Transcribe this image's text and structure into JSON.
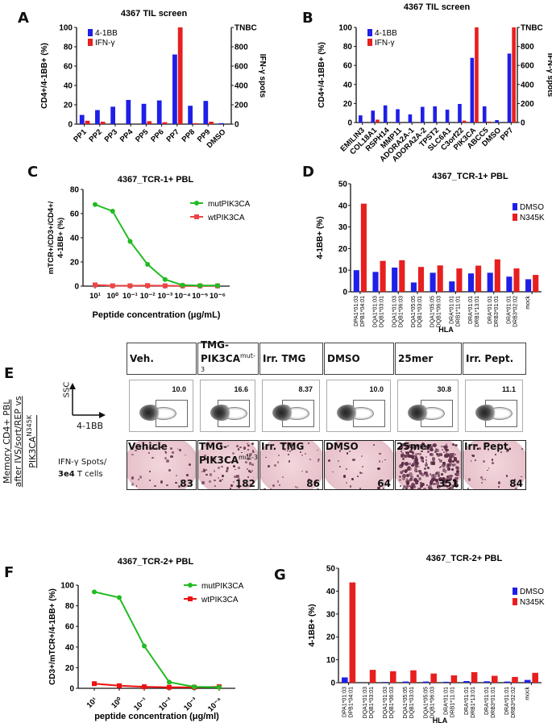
{
  "panels": {
    "A": "A",
    "B": "B",
    "C": "C",
    "D": "D",
    "E": "E",
    "F": "F",
    "G": "G"
  },
  "chart_data": [
    {
      "id": "A",
      "type": "bar",
      "title": "4367 TIL screen",
      "ylabel": "CD4+/4-1BB+ (%)",
      "y2label": "IFN-γ spots",
      "y2_top_label": "TNBC",
      "ylim": [
        0,
        100
      ],
      "y2lim": [
        0,
        1000
      ],
      "yticks": [
        0,
        20,
        40,
        60,
        80,
        100
      ],
      "y2ticks": [
        0,
        200,
        400,
        600,
        800
      ],
      "legend": "top-left",
      "categories": [
        "PP1",
        "PP2",
        "PP3",
        "PP4",
        "PP5",
        "PP6",
        "PP7",
        "PP8",
        "PP9",
        "DMSO"
      ],
      "series": [
        {
          "name": "4-1BB",
          "axis": "left",
          "color": "#1f1fe8",
          "values": [
            9.5,
            14.5,
            18,
            25,
            21,
            24.5,
            72,
            19,
            24,
            1
          ]
        },
        {
          "name": "IFN-γ",
          "axis": "right",
          "color": "#e81f1f",
          "values": [
            35,
            25,
            0,
            0,
            30,
            20,
            1000,
            10,
            25,
            0
          ]
        }
      ]
    },
    {
      "id": "B",
      "type": "bar",
      "title": "4367 TIL screen",
      "ylabel": "CD4+/4-1BB+ (%)",
      "y2label": "IFN-γ spots",
      "y2_top_label": "TNBC",
      "ylim": [
        0,
        100
      ],
      "y2lim": [
        0,
        1000
      ],
      "yticks": [
        0,
        20,
        40,
        60,
        80,
        100
      ],
      "y2ticks": [
        0,
        200,
        400,
        600,
        800
      ],
      "legend": "top-left",
      "categories": [
        "EMILIN3",
        "COL18A1",
        "RSPH14",
        "MMP11",
        "ADORA2A-1",
        "ADORA2A-2",
        "TPST2",
        "SLC6A1",
        "C3orf22",
        "PIK3CA",
        "ABCC5",
        "DMSO",
        "PP7"
      ],
      "series": [
        {
          "name": "4-1BB",
          "axis": "left",
          "color": "#1f1fe8",
          "values": [
            7.5,
            12.5,
            18,
            14,
            8.5,
            16.5,
            17,
            13.5,
            19.5,
            68,
            17,
            2.5,
            72.5
          ]
        },
        {
          "name": "IFN-γ",
          "axis": "right",
          "color": "#e81f1f",
          "values": [
            0,
            30,
            0,
            0,
            0,
            0,
            0,
            0,
            20,
            1000,
            10,
            0,
            1000
          ]
        }
      ]
    },
    {
      "id": "C",
      "type": "line",
      "title": "4367_TCR-1+ PBL",
      "ylabel": "mTCR+/CD3+/CD4+/ 4-1BB+ (%)",
      "xlabel": "Peptide concentration (μg/mL)",
      "ylim": [
        0,
        80
      ],
      "yticks": [
        0,
        20,
        40,
        60,
        80
      ],
      "legend": "top-right",
      "x": [
        "10¹",
        "10⁰",
        "10⁻¹",
        "10⁻²",
        "10⁻³",
        "10⁻⁴",
        "10⁻⁵",
        "10⁻⁶"
      ],
      "series": [
        {
          "name": "mutPIK3CA",
          "color": "#22bb22",
          "marker": "circle",
          "values": [
            67.5,
            62,
            37,
            18,
            5.5,
            0.8,
            0.5,
            0.5
          ]
        },
        {
          "name": "wtPIK3CA",
          "color": "#ee4444",
          "marker": "square",
          "values": [
            1,
            0.3,
            0.3,
            0.5,
            0.3,
            0.2,
            0.2,
            0.2
          ]
        }
      ]
    },
    {
      "id": "D",
      "type": "bar",
      "title": "4367_TCR-1+ PBL",
      "ylabel": "4-1BB+ (%)",
      "xlabel": "HLA",
      "ylim": [
        0,
        50
      ],
      "yticks": [
        0,
        10,
        20,
        30,
        40,
        50
      ],
      "legend": "right",
      "categories": [
        [
          "DPA1*01:03",
          "DPB1*04:01"
        ],
        [
          "DQA1*01:03",
          "DQB1*03:01"
        ],
        [
          "DQA1*01:03",
          "DQB1*06:03"
        ],
        [
          "DQA1*05:05",
          "DQB1*03:01"
        ],
        [
          "DQA1*05:05",
          "DQB1*06:03"
        ],
        [
          "DRA*01:01",
          "DRB1*11:01"
        ],
        [
          "DRA*01:01",
          "DRB1*13:01"
        ],
        [
          "DRA*01:01",
          "DRB3*01:01"
        ],
        [
          "DRA*01:01",
          "DRB3*02:02"
        ],
        [
          "mock"
        ]
      ],
      "series": [
        {
          "name": "DMSO",
          "color": "#1f1fe8",
          "values": [
            10,
            9.2,
            11.2,
            4.3,
            8.8,
            4.8,
            8.5,
            8.8,
            7,
            5.8
          ]
        },
        {
          "name": "N345K",
          "color": "#e81f1f",
          "values": [
            40.8,
            14.3,
            14.6,
            11.5,
            12.2,
            10.8,
            12.1,
            15,
            10.8,
            7.8
          ]
        }
      ]
    },
    {
      "id": "F",
      "type": "line",
      "title": "4367_TCR-2+ PBL",
      "ylabel": "CD3+/mTCR+/4-1BB+ (%)",
      "xlabel": "peptide concentration (μg/ml)",
      "ylim": [
        0,
        100
      ],
      "yticks": [
        0,
        20,
        40,
        60,
        80,
        100
      ],
      "legend": "top-right",
      "x": [
        "10¹",
        "10⁰",
        "10⁻¹",
        "10⁻²",
        "10⁻³",
        "10⁻⁴"
      ],
      "series": [
        {
          "name": "mutPIK3CA",
          "color": "#22bb22",
          "marker": "circle",
          "values": [
            93.5,
            88,
            41,
            6,
            1.5,
            1
          ]
        },
        {
          "name": "wtPIK3CA",
          "color": "#ee1111",
          "marker": "square",
          "values": [
            4.5,
            2.5,
            1.5,
            1,
            1,
            1.5
          ]
        }
      ]
    },
    {
      "id": "G",
      "type": "bar",
      "title": "4367_TCR-2+ PBL",
      "ylabel": "4-1BB+ (%)",
      "xlabel": "HLA",
      "ylim": [
        0,
        50
      ],
      "yticks": [
        0,
        10,
        20,
        30,
        40,
        50
      ],
      "legend": "right",
      "categories": [
        [
          "DPA1*01:03",
          "DPB1*04:01"
        ],
        [
          "DQA1*01:03",
          "DQB1*03:01"
        ],
        [
          "DQA1*01:03",
          "DQB1*06:03"
        ],
        [
          "DQA1*05:05",
          "DQB1*03:01"
        ],
        [
          "DQA1*05:05",
          "DQB1*06:03"
        ],
        [
          "DRA*01:01",
          "DRB1*11:01"
        ],
        [
          "DRA*01:01",
          "DRB1*13:01"
        ],
        [
          "DRA*01:01",
          "DRB3*01:01"
        ],
        [
          "DRA*01:01",
          "DRB3*02:02"
        ],
        [
          "mock"
        ]
      ],
      "series": [
        {
          "name": "DMSO",
          "color": "#1f1fe8",
          "values": [
            2.3,
            0,
            0.3,
            0.5,
            0.5,
            0.4,
            0.7,
            0.6,
            0.5,
            1.2
          ]
        },
        {
          "name": "N345K",
          "color": "#e81f1f",
          "values": [
            43.8,
            5.6,
            5,
            5.4,
            4,
            3.2,
            4.6,
            3,
            2.5,
            4.3
          ]
        }
      ]
    }
  ],
  "panel_e": {
    "side_label_line1": "Memory CD4+ PBL",
    "side_label_line2": "after IVS/sort/REP vs PIK3CA",
    "side_label_sup": "N345K",
    "axis_y": "SSC",
    "axis_x": "4-1BB",
    "spots_label_line1": "IFN-γ Spots/",
    "spots_label_line2_bold": "3e4",
    "spots_label_line2_rest": " T cells",
    "conditions": [
      {
        "header": "Veh.",
        "header_sup": "",
        "flow_value": "10.0",
        "well_label": "Vehicle",
        "well_sup": "",
        "spots": "83"
      },
      {
        "header": "TMG-\nPIK3CA",
        "header_sup": "mut-3",
        "flow_value": "16.6",
        "well_label": "TMG-\nPIK3CA",
        "well_sup": "mut-3",
        "spots": "182"
      },
      {
        "header": "Irr. TMG",
        "header_sup": "",
        "flow_value": "8.37",
        "well_label": "Irr. TMG",
        "well_sup": "",
        "spots": "86"
      },
      {
        "header": "DMSO",
        "header_sup": "",
        "flow_value": "10.0",
        "well_label": "DMSO",
        "well_sup": "",
        "spots": "64"
      },
      {
        "header": "25mer",
        "header_sup": "",
        "flow_value": "30.8",
        "well_label": "25mer",
        "well_sup": "",
        "spots": "351"
      },
      {
        "header": "Irr. Pept.",
        "header_sup": "",
        "flow_value": "11.1",
        "well_label": "Irr. Pept.",
        "well_sup": "",
        "spots": "84"
      }
    ]
  }
}
